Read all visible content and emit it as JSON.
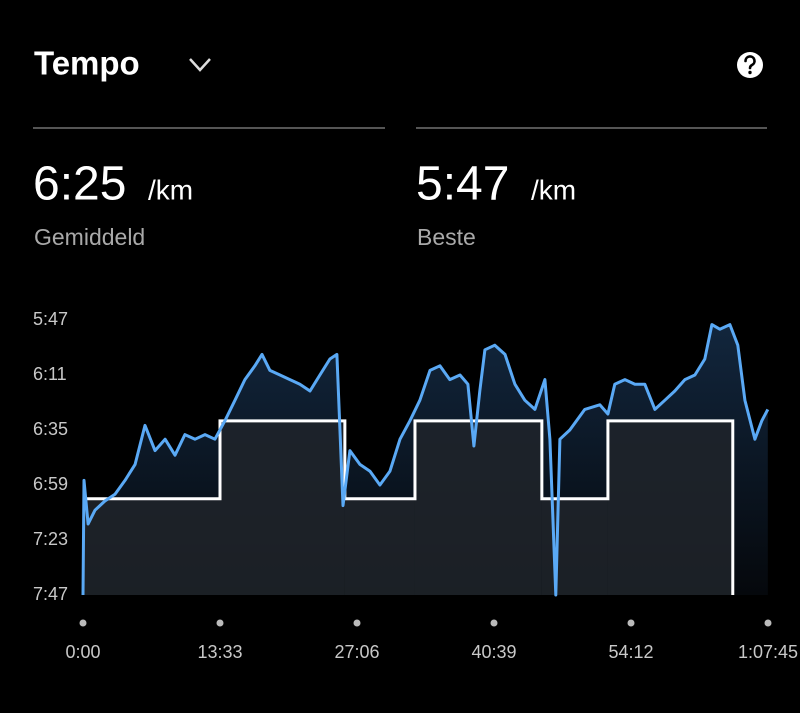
{
  "header": {
    "title": "Tempo"
  },
  "stats": [
    {
      "value": "6:25",
      "unit": "/km",
      "label": "Gemiddeld"
    },
    {
      "value": "5:47",
      "unit": "/km",
      "label": "Beste"
    }
  ],
  "chart_data": {
    "type": "line",
    "ylim": [
      467,
      347
    ],
    "yticks": [
      {
        "value": 347,
        "label": "5:47"
      },
      {
        "value": 371,
        "label": "6:11"
      },
      {
        "value": 395,
        "label": "6:35"
      },
      {
        "value": 419,
        "label": "6:59"
      },
      {
        "value": 443,
        "label": "7:23"
      },
      {
        "value": 467,
        "label": "7:47"
      }
    ],
    "xlim": [
      0,
      4065
    ],
    "xticks": [
      {
        "value": 0,
        "label": "0:00"
      },
      {
        "value": 813,
        "label": "13:33"
      },
      {
        "value": 1626,
        "label": "27:06"
      },
      {
        "value": 2439,
        "label": "40:39"
      },
      {
        "value": 3252,
        "label": "54:12"
      },
      {
        "value": 4065,
        "label": "1:07:45"
      }
    ],
    "x": [
      0,
      6,
      30,
      71,
      130,
      190,
      249,
      309,
      368,
      427,
      487,
      546,
      605,
      665,
      724,
      783,
      842,
      902,
      961,
      1020,
      1062,
      1109,
      1169,
      1228,
      1287,
      1347,
      1406,
      1465,
      1507,
      1543,
      1584,
      1643,
      1703,
      1762,
      1821,
      1881,
      1940,
      1999,
      2059,
      2118,
      2177,
      2237,
      2284,
      2320,
      2355,
      2385,
      2444,
      2504,
      2563,
      2622,
      2682,
      2741,
      2771,
      2806,
      2830,
      2889,
      2978,
      3067,
      3115,
      3156,
      3216,
      3275,
      3334,
      3394,
      3453,
      3512,
      3572,
      3631,
      3690,
      3732,
      3779,
      3839,
      3886,
      3928,
      3987,
      4028,
      4064
    ],
    "series": [
      {
        "color": "#5aa9f5",
        "values": [
          467,
          417,
          436,
          430,
          426,
          423,
          417,
          410,
          393,
          404,
          399,
          406,
          397,
          399,
          397,
          399,
          391,
          382,
          373,
          367,
          362,
          369,
          371,
          373,
          375,
          378,
          371,
          364,
          362,
          428,
          404,
          410,
          413,
          419,
          413,
          399,
          391,
          382,
          369,
          367,
          373,
          371,
          375,
          402,
          378,
          360,
          358,
          362,
          375,
          382,
          386,
          373,
          399,
          467,
          399,
          395,
          386,
          384,
          388,
          375,
          373,
          375,
          375,
          386,
          382,
          378,
          373,
          371,
          364,
          349,
          351,
          349,
          358,
          382,
          399,
          391,
          386
        ]
      }
    ],
    "laps": {
      "color": "#ffffff",
      "bins": [
        0,
        813,
        1554,
        1970,
        2723,
        3115,
        3856
      ],
      "values": [
        425,
        391,
        425,
        391,
        425,
        391
      ]
    }
  }
}
